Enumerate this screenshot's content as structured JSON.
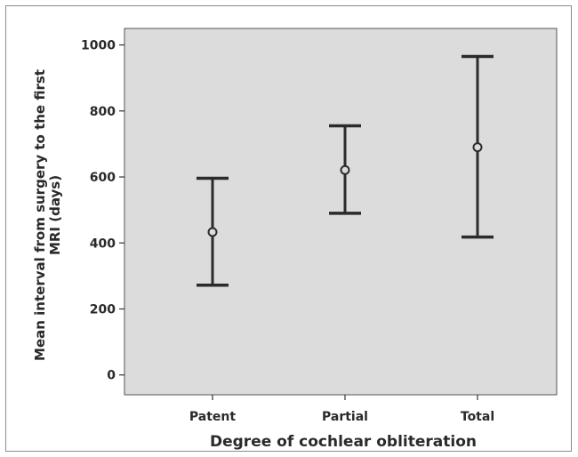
{
  "chart_data": {
    "type": "errorbar",
    "title": "",
    "xlabel": "Degree of cochlear obliteration",
    "ylabel": "Mean interval from surgery to the first MRI (days)",
    "ylabel_lines": [
      "Mean interval from surgery to the first",
      "MRI (days)"
    ],
    "categories": [
      "Patent",
      "Partial",
      "Total"
    ],
    "series": [
      {
        "means": [
          433,
          621,
          690
        ],
        "lower": [
          272,
          490,
          418
        ],
        "upper": [
          596,
          755,
          965
        ]
      }
    ],
    "ylim": [
      -60,
      1050
    ],
    "yticks": [
      0,
      200,
      400,
      600,
      800,
      1000
    ],
    "grid": false,
    "legend": "none",
    "colors": {
      "plot_background": "#dcdcdc",
      "marks": "#2b2b2b"
    }
  }
}
